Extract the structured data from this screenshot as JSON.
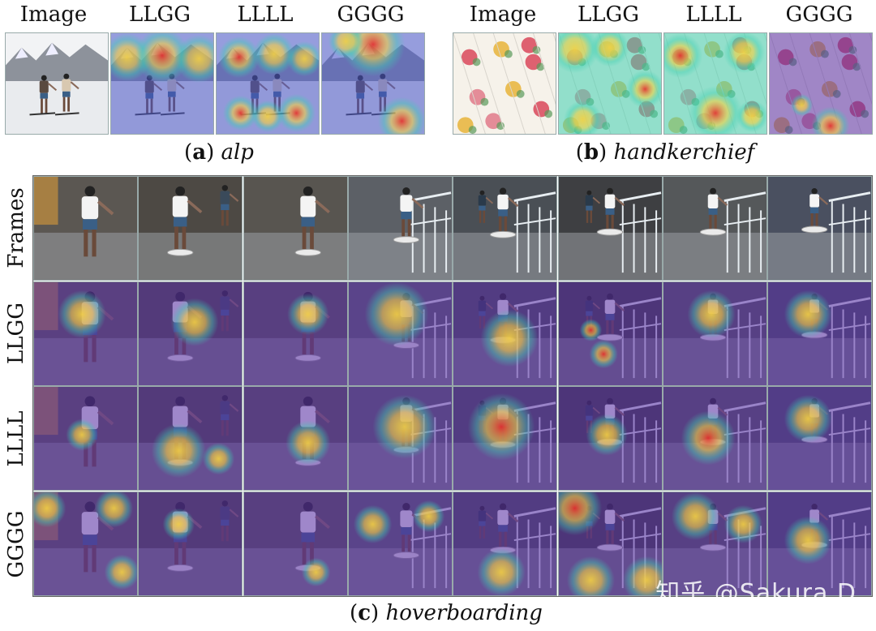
{
  "panel_a": {
    "headers": [
      "Image",
      "LLGG",
      "LLLL",
      "GGGG"
    ],
    "caption_label": "a",
    "caption_name": "alp"
  },
  "panel_b": {
    "headers": [
      "Image",
      "LLGG",
      "LLLL",
      "GGGG"
    ],
    "caption_label": "b",
    "caption_name": "handkerchief"
  },
  "panel_c": {
    "row_labels": [
      "Frames",
      "LLGG",
      "LLLL",
      "GGGG"
    ],
    "caption_label": "c",
    "caption_name": "hoverboarding"
  },
  "watermark": "知乎 @Sakura.D",
  "colors": {
    "heat_hot": "#e8302a",
    "heat_warm": "#f5d142",
    "heat_mid": "#3fd0b0",
    "heat_cool": "#4a55c8",
    "heat_cold": "#5a2ea8"
  }
}
